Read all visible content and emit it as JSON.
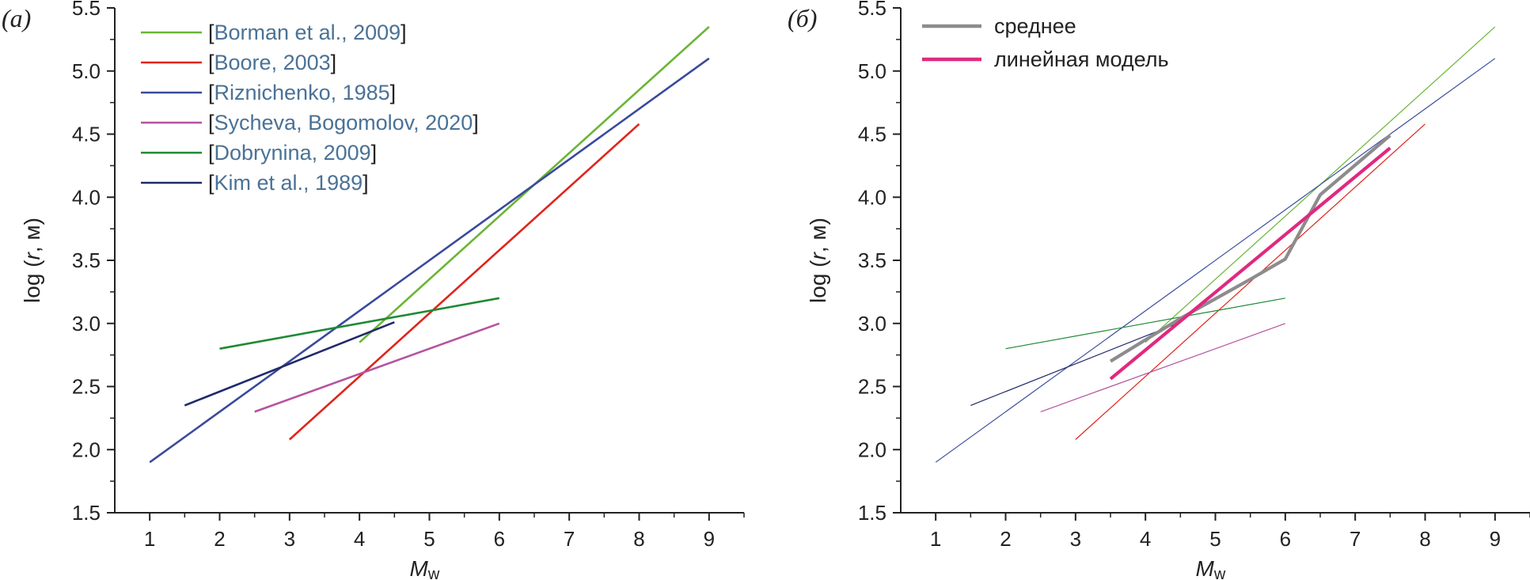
{
  "figure": {
    "panels": [
      {
        "letter": "(a)",
        "xlabel_main": "M",
        "xlabel_sub": "w",
        "ylabel": "log (r, м)",
        "ylabel_parts": [
          "log (",
          "r",
          ", м)"
        ]
      },
      {
        "letter": "(б)",
        "xlabel_main": "M",
        "xlabel_sub": "w",
        "ylabel": "log (r, м)",
        "ylabel_parts": [
          "log (",
          "r",
          ", м)"
        ]
      }
    ]
  },
  "chart_data": [
    {
      "type": "line",
      "title": "",
      "xlabel": "Mw",
      "ylabel": "log (r, м)",
      "xlim": [
        0.5,
        9.5
      ],
      "ylim": [
        1.5,
        5.5
      ],
      "xticks": [
        1,
        2,
        3,
        4,
        5,
        6,
        7,
        8,
        9
      ],
      "yticks": [
        "1.5",
        "2.0",
        "2.5",
        "3.0",
        "3.5",
        "4.0",
        "4.5",
        "5.0",
        "5.5"
      ],
      "legend_placement": "top-left",
      "series": [
        {
          "name": "Borman et al., 2009",
          "color": "#6ab535",
          "x": [
            4,
            9
          ],
          "y": [
            2.85,
            5.35
          ]
        },
        {
          "name": "Boore, 2003",
          "color": "#e0241b",
          "x": [
            3,
            8
          ],
          "y": [
            2.08,
            4.58
          ]
        },
        {
          "name": "Riznichenko, 1985",
          "color": "#3a4a9c",
          "x": [
            1,
            9
          ],
          "y": [
            1.9,
            5.1
          ]
        },
        {
          "name": "Sycheva, Bogomolov, 2020",
          "color": "#b5539f",
          "x": [
            2.5,
            6
          ],
          "y": [
            2.3,
            3.0
          ]
        },
        {
          "name": "Dobrynina, 2009",
          "color": "#1e8a34",
          "x": [
            2,
            6
          ],
          "y": [
            2.8,
            3.2
          ]
        },
        {
          "name": "Kim et al., 1989",
          "color": "#1f2a6b",
          "x": [
            1.5,
            4.5
          ],
          "y": [
            2.35,
            3.01
          ]
        }
      ]
    },
    {
      "type": "line",
      "title": "",
      "xlabel": "Mw",
      "ylabel": "log (r, м)",
      "xlim": [
        0.5,
        9.5
      ],
      "ylim": [
        1.5,
        5.5
      ],
      "xticks": [
        1,
        2,
        3,
        4,
        5,
        6,
        7,
        8,
        9
      ],
      "yticks": [
        "1.5",
        "2.0",
        "2.5",
        "3.0",
        "3.5",
        "4.0",
        "4.5",
        "5.0",
        "5.5"
      ],
      "legend_placement": "top-left",
      "background_series": [
        {
          "color": "#6ab535",
          "x": [
            4,
            9
          ],
          "y": [
            2.85,
            5.35
          ]
        },
        {
          "color": "#e0241b",
          "x": [
            3,
            8
          ],
          "y": [
            2.08,
            4.58
          ]
        },
        {
          "color": "#3a4a9c",
          "x": [
            1,
            9
          ],
          "y": [
            1.9,
            5.1
          ]
        },
        {
          "color": "#b5539f",
          "x": [
            2.5,
            6
          ],
          "y": [
            2.3,
            3.0
          ]
        },
        {
          "color": "#1e8a34",
          "x": [
            2,
            6
          ],
          "y": [
            2.8,
            3.2
          ]
        },
        {
          "color": "#1f2a6b",
          "x": [
            1.5,
            4.5
          ],
          "y": [
            2.35,
            3.01
          ]
        }
      ],
      "series": [
        {
          "name": "среднее",
          "color": "#8c8c8c",
          "x": [
            3.5,
            4.5,
            5.5,
            6.0,
            6.5,
            7.5
          ],
          "y": [
            2.7,
            3.04,
            3.35,
            3.51,
            4.02,
            4.49
          ]
        },
        {
          "name": "линейная модель",
          "color": "#e0297f",
          "x": [
            3.5,
            7.5
          ],
          "y": [
            2.56,
            4.39
          ]
        }
      ]
    }
  ]
}
